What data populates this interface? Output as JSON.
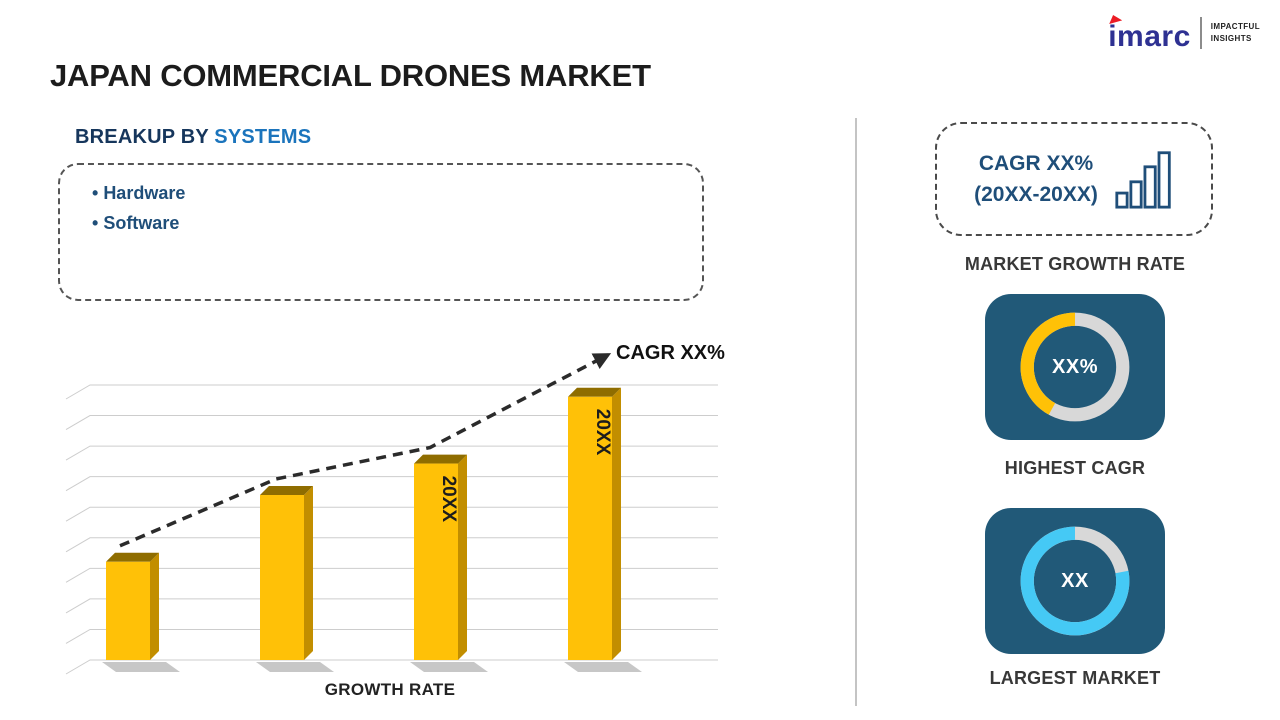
{
  "page": {
    "title": "JAPAN COMMERCIAL DRONES MARKET"
  },
  "logo": {
    "brand": "imarc",
    "tagline": [
      "IMPACTFUL",
      "INSIGHTS"
    ]
  },
  "breakup": {
    "prefix": "BREAKUP BY",
    "highlight": "SYSTEMS",
    "items": [
      "Hardware",
      "Software"
    ]
  },
  "chart_data": {
    "type": "bar",
    "title": "",
    "categories": [
      "",
      "",
      "20XX",
      "20XX"
    ],
    "values": [
      25,
      42,
      50,
      67
    ],
    "ylim": [
      0,
      70
    ],
    "xlabel": "GROWTH RATE",
    "ylabel": "",
    "grid": true,
    "legend": "none",
    "bar_color": "#FFC107",
    "bar_side_color": "#C28E00",
    "bar_top_color": "#8F6D00",
    "trend_annotation": "CAGR XX%",
    "trend_style": "dashed-arrow-ascending"
  },
  "right_panel": {
    "growth_box": {
      "line1": "CAGR XX%",
      "line2": "(20XX-20XX)",
      "icon": "bar-chart-icon"
    },
    "growth_caption": "MARKET GROWTH RATE",
    "highest_cagr": {
      "value": "XX%",
      "caption": "HIGHEST CAGR",
      "percent": 42,
      "arc_color": "#FFC107"
    },
    "largest_market": {
      "value": "XX",
      "caption": "LARGEST MARKET",
      "percent": 78,
      "arc_color": "#45C9F5"
    },
    "tile_color": "#215978",
    "ring_track_color": "#D8D8D8"
  }
}
